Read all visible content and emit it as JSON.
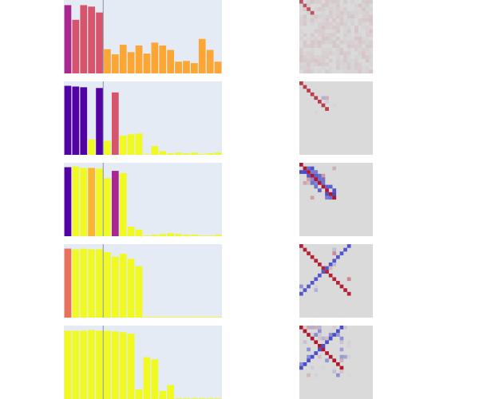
{
  "chart_data": {
    "type": "figure-grid",
    "rows": [
      {
        "bar": {
          "type": "bar",
          "values": [
            0.93,
            0.73,
            0.93,
            0.91,
            0.83,
            0.33,
            0.26,
            0.39,
            0.29,
            0.38,
            0.27,
            0.42,
            0.38,
            0.32,
            0.16,
            0.17,
            0.14,
            0.47,
            0.32,
            0.16
          ],
          "colors": [
            "#a9288f",
            "#d6556d",
            "#d6556d",
            "#d6556d",
            "#d6556d",
            "#fca636",
            "#fca636",
            "#fca636",
            "#fca636",
            "#fca636",
            "#fca636",
            "#fca636",
            "#fca636",
            "#fca636",
            "#fca636",
            "#fca636",
            "#fca636",
            "#fca636",
            "#fca636",
            "#fca636"
          ],
          "ylim": [
            0,
            1
          ],
          "vline_index": 5
        },
        "heatmap": {
          "type": "heatmap",
          "size": 20,
          "pattern": "noise",
          "scale": 0.25
        }
      },
      {
        "bar": {
          "type": "bar",
          "values": [
            0.94,
            0.93,
            0.92,
            0.21,
            0.91,
            0.19,
            0.85,
            0.26,
            0.28,
            0.29,
            0.01,
            0.12,
            0.05,
            0.02,
            0.03,
            0.02,
            0.03,
            0.01,
            0.02,
            0.03
          ],
          "colors": [
            "#5302a3",
            "#5302a3",
            "#5302a3",
            "#f0f921",
            "#5302a3",
            "#f0f921",
            "#d6556d",
            "#f0f921",
            "#f0f921",
            "#f0f921",
            "#f0f921",
            "#f0f921",
            "#f0f921",
            "#f0f921",
            "#f0f921",
            "#f0f921",
            "#f0f921",
            "#f0f921",
            "#f0f921",
            "#f0f921"
          ],
          "ylim": [
            0,
            1
          ],
          "vline_index": 5
        },
        "heatmap": {
          "type": "heatmap",
          "size": 20,
          "pattern": "sparse-diagonal",
          "scale": 0.9
        }
      },
      {
        "bar": {
          "type": "bar",
          "values": [
            0.94,
            0.95,
            0.93,
            0.93,
            0.92,
            0.79,
            0.89,
            0.86,
            0.13,
            0.09,
            0.01,
            0.02,
            0.03,
            0.04,
            0.03,
            0.02,
            0.02,
            0.01,
            0.01,
            0.02
          ],
          "colors": [
            "#5302a3",
            "#f0f921",
            "#f0f921",
            "#fdb42f",
            "#f0f921",
            "#f0f921",
            "#a9288f",
            "#f0f921",
            "#f0f921",
            "#f0f921",
            "#f0f921",
            "#f0f921",
            "#f0f921",
            "#f0f921",
            "#f0f921",
            "#f0f921",
            "#f0f921",
            "#f0f921",
            "#f0f921",
            "#f0f921"
          ],
          "ylim": [
            0,
            1
          ],
          "vline_index": 5
        },
        "heatmap": {
          "type": "heatmap",
          "size": 20,
          "pattern": "band",
          "scale": 1.0
        }
      },
      {
        "bar": {
          "type": "bar",
          "values": [
            0.94,
            0.93,
            0.94,
            0.93,
            0.93,
            0.89,
            0.83,
            0.87,
            0.8,
            0.7,
            0.01,
            0.01,
            0.01,
            0.01,
            0.01,
            0.01,
            0.01,
            0.01,
            0.01,
            0.01
          ],
          "colors": [
            "#e8715b",
            "#f0f921",
            "#f0f921",
            "#f0f921",
            "#f0f921",
            "#f0f921",
            "#f0f921",
            "#f0f921",
            "#f0f921",
            "#f0f921",
            "#f0f921",
            "#f0f921",
            "#f0f921",
            "#f0f921",
            "#f0f921",
            "#f0f921",
            "#f0f921",
            "#f0f921",
            "#f0f921",
            "#f0f921"
          ],
          "ylim": [
            0,
            1
          ],
          "vline_index": 5
        },
        "heatmap": {
          "type": "heatmap",
          "size": 20,
          "pattern": "x-cross",
          "scale": 1.0
        }
      },
      {
        "bar": {
          "type": "bar",
          "values": [
            0.93,
            0.93,
            0.93,
            0.94,
            0.93,
            0.93,
            0.92,
            0.91,
            0.89,
            0.13,
            0.57,
            0.54,
            0.11,
            0.19,
            0.01,
            0.01,
            0.01,
            0.01,
            0.01,
            0.01
          ],
          "colors": [
            "#f0f921",
            "#f0f921",
            "#f0f921",
            "#f0f921",
            "#f0f921",
            "#f0f921",
            "#f0f921",
            "#f0f921",
            "#f0f921",
            "#f0f921",
            "#f0f921",
            "#f0f921",
            "#f0f921",
            "#f0f921",
            "#f0f921",
            "#f0f921",
            "#f0f921",
            "#f0f921",
            "#f0f921",
            "#f0f921"
          ],
          "ylim": [
            0,
            1
          ],
          "vline_index": 5
        },
        "heatmap": {
          "type": "heatmap",
          "size": 20,
          "pattern": "x-cross-noise",
          "scale": 1.0
        }
      }
    ]
  }
}
